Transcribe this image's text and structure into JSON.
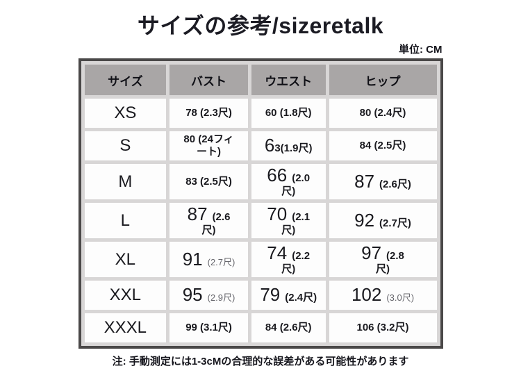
{
  "page": {
    "title": "サイズの参考/sizeretalk",
    "unit_label": "単位: CM",
    "note": "注: 手動測定には1-3cMの合理的な誤差がある可能性があります"
  },
  "colors": {
    "header_bg": "#a9a6a6",
    "grid_gap": "#d8d6d6",
    "border": "#4a4848",
    "cell_bg": "#fdfdfd"
  },
  "chart_data": {
    "type": "table",
    "title": "サイズの参考/sizeretalk",
    "unit": "CM",
    "columns": [
      "サイズ",
      "バスト",
      "ウエスト",
      "ヒップ"
    ],
    "rows": [
      [
        "XS",
        "78 (2.3尺)",
        "60 (1.8尺)",
        "80 (2.4尺)"
      ],
      [
        "S",
        "80 (24フィート)",
        "63(1.9尺)",
        "84 (2.5尺)"
      ],
      [
        "M",
        "83 (2.5尺)",
        "66 (2.0尺)",
        "87 (2.6尺)"
      ],
      [
        "L",
        "87 (2.6尺)",
        "70 (2.1尺)",
        "92 (2.7尺)"
      ],
      [
        "XL",
        "91 (2.7尺)",
        "74 (2.2尺)",
        "97 (2.8尺)"
      ],
      [
        "XXL",
        "95 (2.9尺)",
        "79 (2.4尺)",
        "102 (3.0尺)"
      ],
      [
        "XXXL",
        "99 (3.1尺)",
        "84 (2.6尺)",
        "106 (3.2尺)"
      ]
    ],
    "note": "注: 手動測定には1-3cMの合理的な誤差がある可能性があります"
  },
  "table": {
    "columns": [
      "サイズ",
      "バスト",
      "ウエスト",
      "ヒップ"
    ],
    "rows": [
      {
        "size": "XS",
        "cells": [
          [
            {
              "t": "78 (2.3尺)",
              "s": "bold"
            }
          ],
          [
            {
              "t": "60 (1.8尺)",
              "s": "bold"
            }
          ],
          [
            {
              "t": "80 (2.4尺)",
              "s": "bold"
            }
          ]
        ]
      },
      {
        "size": "S",
        "cells": [
          [
            {
              "t": "80 (24フィ\nート)",
              "s": "bold"
            }
          ],
          [
            {
              "t": "6",
              "s": "big"
            },
            {
              "t": "3(1.9尺)",
              "s": "bold"
            }
          ],
          [
            {
              "t": "84 (2.5尺)",
              "s": "bold"
            }
          ]
        ]
      },
      {
        "size": "M",
        "cells": [
          [
            {
              "t": "83 (2.5尺)",
              "s": "bold"
            }
          ],
          [
            {
              "t": "66",
              "s": "big"
            },
            {
              "t": "(2.0\n尺)",
              "s": "bold gap"
            }
          ],
          [
            {
              "t": "87",
              "s": "big"
            },
            {
              "t": "(2.6尺)",
              "s": "bold gap"
            }
          ]
        ]
      },
      {
        "size": "L",
        "cells": [
          [
            {
              "t": "87",
              "s": "big"
            },
            {
              "t": "(2.6\n尺)",
              "s": "bold gap"
            }
          ],
          [
            {
              "t": "70",
              "s": "big"
            },
            {
              "t": "(2.1\n尺)",
              "s": "bold gap"
            }
          ],
          [
            {
              "t": "92",
              "s": "big"
            },
            {
              "t": "(2.7尺)",
              "s": "bold gap"
            }
          ]
        ]
      },
      {
        "size": "XL",
        "cells": [
          [
            {
              "t": "91",
              "s": "big"
            },
            {
              "t": "(2.7尺)",
              "s": "light gap"
            }
          ],
          [
            {
              "t": "74",
              "s": "big"
            },
            {
              "t": "(2.2\n尺)",
              "s": "bold gap"
            }
          ],
          [
            {
              "t": "97",
              "s": "big"
            },
            {
              "t": "(2.8\n尺)",
              "s": "bold gap"
            }
          ]
        ]
      },
      {
        "size": "XXL",
        "cells": [
          [
            {
              "t": "95",
              "s": "big"
            },
            {
              "t": "(2.9尺)",
              "s": "light gap"
            }
          ],
          [
            {
              "t": "79",
              "s": "big"
            },
            {
              "t": "(2.4尺)",
              "s": "bold gap"
            }
          ],
          [
            {
              "t": "102",
              "s": "big"
            },
            {
              "t": "(3.0尺)",
              "s": "light gap"
            }
          ]
        ]
      },
      {
        "size": "XXXL",
        "cells": [
          [
            {
              "t": "99 (3.1尺)",
              "s": "bold"
            }
          ],
          [
            {
              "t": "84 (2.6尺)",
              "s": "bold"
            }
          ],
          [
            {
              "t": "106 (3.2尺)",
              "s": "bold"
            }
          ]
        ]
      }
    ]
  }
}
